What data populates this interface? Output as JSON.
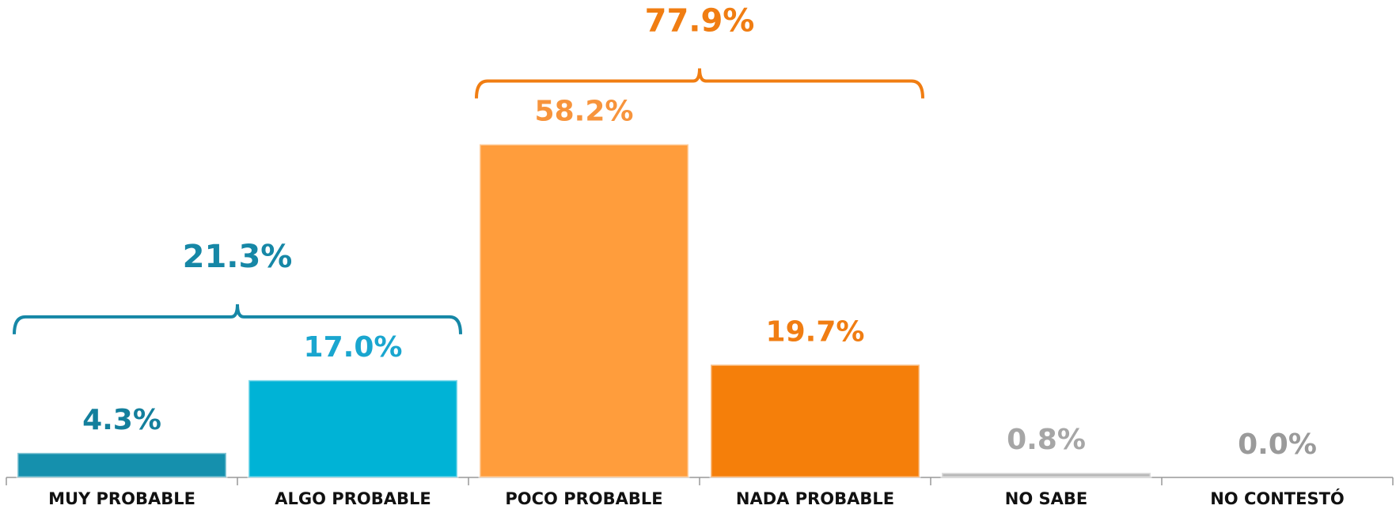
{
  "chart_data": {
    "type": "bar",
    "categories": [
      "MUY PROBABLE",
      "ALGO PROBABLE",
      "POCO PROBABLE",
      "NADA PROBABLE",
      "NO SABE",
      "NO CONTESTÓ"
    ],
    "values": [
      4.3,
      17.0,
      58.2,
      19.7,
      0.8,
      0.0
    ],
    "value_labels": [
      "4.3%",
      "17.0%",
      "58.2%",
      "19.7%",
      "0.8%",
      "0.0%"
    ],
    "colors": [
      "#1590ad",
      "#00b3d6",
      "#ff9d3c",
      "#f57f0a",
      "#b8b8b8",
      "#a0a0a0"
    ],
    "label_colors": [
      "#137f9c",
      "#1aa6cf",
      "#f7943c",
      "#f07d12",
      "#a6a6a6",
      "#9a9a9a"
    ],
    "ylim": [
      0,
      70
    ],
    "groups": [
      {
        "categories": [
          "MUY PROBABLE",
          "ALGO PROBABLE"
        ],
        "value": 21.3,
        "label": "21.3%",
        "color": "#1687a6"
      },
      {
        "categories": [
          "POCO PROBABLE",
          "NADA PROBABLE"
        ],
        "value": 77.9,
        "label": "77.9%",
        "color": "#f07d12"
      }
    ]
  }
}
